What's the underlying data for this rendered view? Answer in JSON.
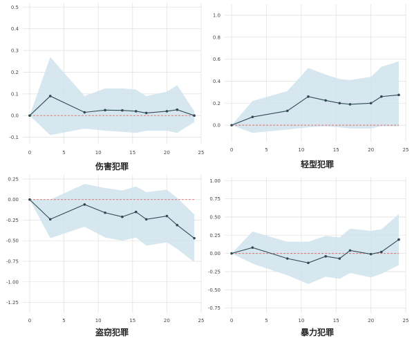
{
  "colors": {
    "line": "#2f4a55",
    "band": "#cfe3ec",
    "zero_line": "#e06c6c",
    "grid": "#e2e2e2"
  },
  "chart_data": [
    {
      "type": "line",
      "title": "伤害犯罪",
      "x": [
        0,
        3,
        8,
        11,
        13.5,
        15.5,
        17,
        20,
        21.5,
        24
      ],
      "series": [
        {
          "values": [
            0.0,
            0.09,
            0.015,
            0.025,
            0.024,
            0.02,
            0.012,
            0.02,
            0.027,
            0.0
          ]
        }
      ],
      "band_upper": [
        0.0,
        0.27,
        0.09,
        0.125,
        0.125,
        0.12,
        0.09,
        0.11,
        0.14,
        0.02
      ],
      "band_lower": [
        0.0,
        -0.09,
        -0.06,
        -0.07,
        -0.075,
        -0.08,
        -0.07,
        -0.07,
        -0.08,
        -0.03
      ],
      "xlim": [
        -1,
        25
      ],
      "ylim": [
        -0.13,
        0.52
      ],
      "xticks": [
        "0",
        "5",
        "10",
        "15",
        "20",
        "25"
      ],
      "yticks": [
        "-0.1",
        "0.0",
        "0.1",
        "0.2",
        "0.3",
        "0.4",
        "0.5"
      ],
      "ytick_values": [
        -0.1,
        0,
        0.1,
        0.2,
        0.3,
        0.4,
        0.5
      ],
      "grid": true
    },
    {
      "type": "line",
      "title": "轻型犯罪",
      "x": [
        0,
        3,
        8,
        11,
        13.5,
        15.5,
        17,
        20,
        21.5,
        24
      ],
      "series": [
        {
          "values": [
            0.0,
            0.075,
            0.13,
            0.26,
            0.225,
            0.2,
            0.19,
            0.2,
            0.26,
            0.275
          ]
        }
      ],
      "band_upper": [
        0.0,
        0.22,
        0.31,
        0.52,
        0.46,
        0.42,
        0.41,
        0.44,
        0.53,
        0.58
      ],
      "band_lower": [
        0.0,
        -0.07,
        -0.04,
        -0.02,
        -0.01,
        -0.02,
        -0.03,
        -0.03,
        -0.01,
        -0.01
      ],
      "xlim": [
        -1,
        25
      ],
      "ylim": [
        -0.15,
        1.1
      ],
      "xticks": [
        "0",
        "5",
        "10",
        "15",
        "20",
        "25"
      ],
      "yticks": [
        "0.0",
        "0.2",
        "0.4",
        "0.6",
        "0.8",
        "1.0"
      ],
      "ytick_values": [
        0,
        0.2,
        0.4,
        0.6,
        0.8,
        1.0
      ],
      "grid": true
    },
    {
      "type": "line",
      "title": "盗窃犯罪",
      "x": [
        0,
        3,
        8,
        11,
        13.5,
        15.5,
        17,
        20,
        21.5,
        24
      ],
      "series": [
        {
          "values": [
            0.0,
            -0.24,
            -0.06,
            -0.16,
            -0.21,
            -0.15,
            -0.24,
            -0.2,
            -0.31,
            -0.47
          ]
        }
      ],
      "band_upper": [
        0.0,
        0.0,
        0.19,
        0.14,
        0.11,
        0.16,
        0.09,
        0.12,
        0.02,
        -0.18
      ],
      "band_lower": [
        0.0,
        -0.47,
        -0.33,
        -0.46,
        -0.5,
        -0.46,
        -0.56,
        -0.52,
        -0.6,
        -0.76
      ],
      "xlim": [
        -1,
        25
      ],
      "ylim": [
        -1.38,
        0.3
      ],
      "xticks": [
        "0",
        "5",
        "10",
        "15",
        "20",
        "25"
      ],
      "yticks": [
        "-1.25",
        "-1.00",
        "-0.75",
        "-0.50",
        "-0.25",
        "0.00",
        "0.25"
      ],
      "ytick_values": [
        -1.25,
        -1.0,
        -0.75,
        -0.5,
        -0.25,
        0,
        0.25
      ],
      "grid": true
    },
    {
      "type": "line",
      "title": "暴力犯罪",
      "x": [
        0,
        3,
        8,
        11,
        13.5,
        15.5,
        17,
        20,
        21.5,
        24
      ],
      "series": [
        {
          "values": [
            0.0,
            0.08,
            -0.07,
            -0.13,
            -0.04,
            -0.07,
            0.04,
            -0.01,
            0.02,
            0.19
          ]
        }
      ],
      "band_upper": [
        0.0,
        0.3,
        0.16,
        0.16,
        0.24,
        0.22,
        0.34,
        0.31,
        0.33,
        0.54
      ],
      "band_lower": [
        0.0,
        -0.14,
        -0.3,
        -0.42,
        -0.32,
        -0.35,
        -0.27,
        -0.33,
        -0.28,
        -0.16
      ],
      "xlim": [
        -1,
        25
      ],
      "ylim": [
        -0.82,
        1.05
      ],
      "xticks": [
        "0",
        "5",
        "10",
        "15",
        "20",
        "25"
      ],
      "yticks": [
        "-0.75",
        "-0.50",
        "-0.25",
        "0.00",
        "0.25",
        "0.50",
        "0.75",
        "1.00"
      ],
      "ytick_values": [
        -0.75,
        -0.5,
        -0.25,
        0,
        0.25,
        0.5,
        0.75,
        1.0
      ],
      "grid": true
    }
  ]
}
